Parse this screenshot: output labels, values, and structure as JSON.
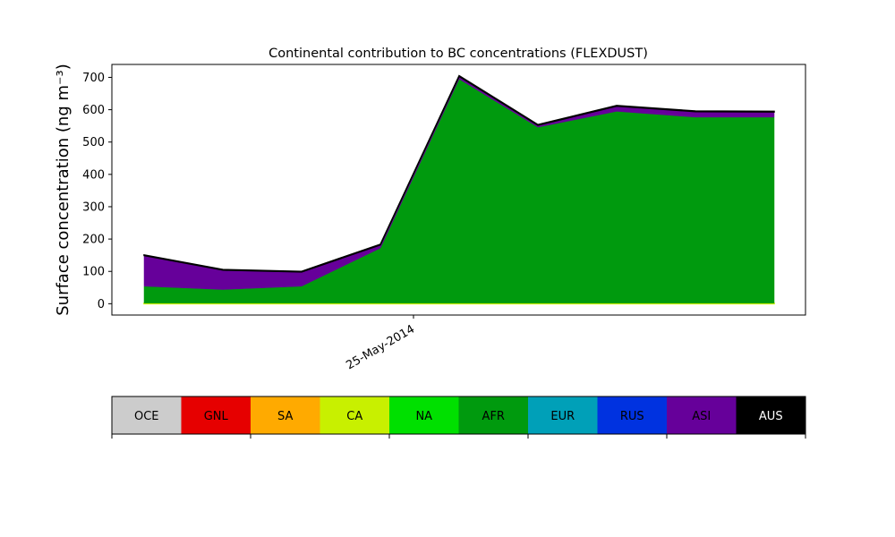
{
  "chart_data": {
    "type": "area",
    "title": "Continental contribution to BC concentrations (FLEXDUST)",
    "ylabel": "Surface concentration (ng m⁻³)",
    "xlabel": "",
    "ylim": [
      -35,
      740
    ],
    "yticks": [
      0,
      100,
      200,
      300,
      400,
      500,
      600,
      700
    ],
    "x_ticks": [
      "25-May-2014"
    ],
    "stacked": true,
    "series": [
      {
        "name": "OCE",
        "color": "#cccccc",
        "values": [
          0,
          0,
          0,
          0,
          0,
          0,
          0,
          0,
          0
        ]
      },
      {
        "name": "GNL",
        "color": "#e60000",
        "values": [
          0,
          0,
          0,
          0,
          0,
          0,
          0,
          0,
          0
        ]
      },
      {
        "name": "SA",
        "color": "#ffaa00",
        "values": [
          0,
          0,
          0,
          0,
          0,
          0,
          0,
          0,
          0
        ]
      },
      {
        "name": "CA",
        "color": "#c8f000",
        "values": [
          2,
          2,
          2,
          2,
          2,
          2,
          2,
          2,
          2
        ]
      },
      {
        "name": "NA",
        "color": "#00e000",
        "values": [
          0,
          0,
          0,
          0,
          0,
          0,
          0,
          0,
          0
        ]
      },
      {
        "name": "AFR",
        "color": "#009a0e",
        "values": [
          52,
          42,
          52,
          170,
          693,
          544,
          593,
          575,
          575
        ]
      },
      {
        "name": "EUR",
        "color": "#00a0b8",
        "values": [
          0,
          0,
          0,
          0,
          0,
          0,
          0,
          0,
          0
        ]
      },
      {
        "name": "RUS",
        "color": "#0032e0",
        "values": [
          0,
          0,
          0,
          0,
          0,
          0,
          0,
          0,
          0
        ]
      },
      {
        "name": "ASI",
        "color": "#66009a",
        "values": [
          95,
          60,
          44,
          10,
          8,
          6,
          16,
          17,
          16
        ]
      },
      {
        "name": "AUS",
        "color": "#000000",
        "values": [
          2,
          2,
          2,
          2,
          2,
          2,
          2,
          2,
          2
        ]
      }
    ]
  }
}
